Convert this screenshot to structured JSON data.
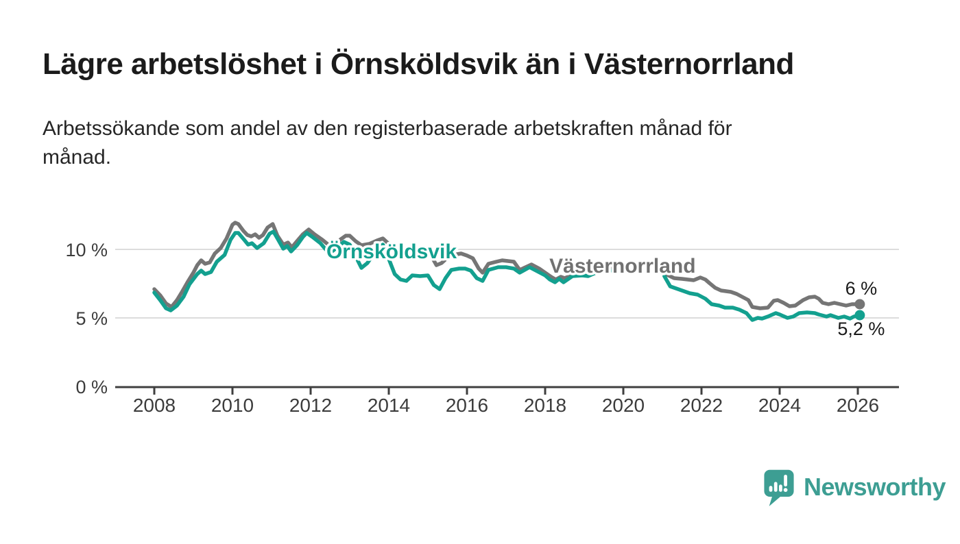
{
  "header": {
    "title": "Lägre arbetslöshet i Örnsköldsvik än i Västernorrland",
    "subtitle_lines": [
      "Arbetssökande som andel av den registerbaserade arbetskraften månad för",
      "månad."
    ]
  },
  "branding": {
    "wordmark": "Newsworthy",
    "icon": "speech-bubble-bar-chart-icon",
    "accent_color": "#3d9e93"
  },
  "chart_data": {
    "type": "line",
    "unit": "%",
    "title": "",
    "x_axis": {
      "tick_years": [
        2008,
        2010,
        2012,
        2014,
        2016,
        2018,
        2020,
        2022,
        2024,
        2026
      ],
      "range": [
        2007.0,
        2027.1
      ]
    },
    "y_axis": {
      "ticks": [
        {
          "value": 0,
          "label": "0 %"
        },
        {
          "value": 5,
          "label": "5 %"
        },
        {
          "value": 10,
          "label": "10 %"
        }
      ],
      "range": [
        0,
        12.8
      ]
    },
    "grid": {
      "show_horizontal": true,
      "gridline_values": [
        5,
        10
      ],
      "gridline_color": "#dcdcdc"
    },
    "data_gap": {
      "from": 2019.67,
      "to": 2021.05
    },
    "series": [
      {
        "name": "Västernorrland",
        "color": "#757575",
        "label_color": "#717171",
        "end_label": "6 %",
        "end_value": 6.0,
        "end_label_position": "above",
        "label_anchor": {
          "year": 2019.98,
          "value": 8.85
        },
        "segments": [
          [
            [
              2008.0,
              7.1
            ],
            [
              2008.15,
              6.65
            ],
            [
              2008.3,
              6.05
            ],
            [
              2008.44,
              5.8
            ],
            [
              2008.58,
              6.3
            ],
            [
              2008.72,
              6.95
            ],
            [
              2008.85,
              7.6
            ],
            [
              2009.0,
              8.3
            ],
            [
              2009.1,
              8.85
            ],
            [
              2009.2,
              9.2
            ],
            [
              2009.3,
              8.95
            ],
            [
              2009.42,
              9.05
            ],
            [
              2009.55,
              9.7
            ],
            [
              2009.7,
              10.1
            ],
            [
              2009.85,
              10.8
            ],
            [
              2010.0,
              11.8
            ],
            [
              2010.07,
              11.95
            ],
            [
              2010.15,
              11.85
            ],
            [
              2010.28,
              11.35
            ],
            [
              2010.38,
              11.05
            ],
            [
              2010.48,
              10.95
            ],
            [
              2010.58,
              11.1
            ],
            [
              2010.68,
              10.85
            ],
            [
              2010.78,
              11.05
            ],
            [
              2010.9,
              11.6
            ],
            [
              2011.03,
              11.85
            ],
            [
              2011.15,
              11.0
            ],
            [
              2011.3,
              10.35
            ],
            [
              2011.42,
              10.5
            ],
            [
              2011.52,
              10.15
            ],
            [
              2011.65,
              10.6
            ],
            [
              2011.8,
              11.1
            ],
            [
              2011.95,
              11.45
            ],
            [
              2012.1,
              11.1
            ],
            [
              2012.3,
              10.7
            ],
            [
              2012.45,
              10.35
            ],
            [
              2012.6,
              10.3
            ],
            [
              2012.75,
              10.7
            ],
            [
              2012.9,
              11.0
            ],
            [
              2013.0,
              11.0
            ],
            [
              2013.15,
              10.6
            ],
            [
              2013.3,
              10.3
            ],
            [
              2013.5,
              10.4
            ],
            [
              2013.7,
              10.65
            ],
            [
              2013.85,
              10.8
            ],
            [
              2014.0,
              10.4
            ],
            [
              2014.2,
              9.9
            ],
            [
              2014.35,
              9.7
            ],
            [
              2014.5,
              9.6
            ],
            [
              2014.65,
              9.75
            ],
            [
              2014.85,
              9.7
            ],
            [
              2015.03,
              9.8
            ],
            [
              2015.13,
              9.3
            ],
            [
              2015.22,
              8.85
            ],
            [
              2015.35,
              9.0
            ],
            [
              2015.5,
              9.4
            ],
            [
              2015.65,
              9.6
            ],
            [
              2015.85,
              9.7
            ],
            [
              2016.0,
              9.55
            ],
            [
              2016.15,
              9.35
            ],
            [
              2016.3,
              8.6
            ],
            [
              2016.4,
              8.3
            ],
            [
              2016.55,
              8.95
            ],
            [
              2016.75,
              9.1
            ],
            [
              2016.9,
              9.2
            ],
            [
              2017.05,
              9.15
            ],
            [
              2017.2,
              9.1
            ],
            [
              2017.35,
              8.5
            ],
            [
              2017.5,
              8.7
            ],
            [
              2017.65,
              8.9
            ],
            [
              2017.85,
              8.6
            ],
            [
              2018.0,
              8.3
            ],
            [
              2018.15,
              8.0
            ],
            [
              2018.27,
              7.8
            ],
            [
              2018.4,
              8.0
            ],
            [
              2018.5,
              7.9
            ],
            [
              2018.7,
              8.15
            ],
            [
              2018.9,
              8.3
            ],
            [
              2019.1,
              8.4
            ],
            [
              2019.3,
              8.5
            ],
            [
              2019.5,
              8.55
            ],
            [
              2019.67,
              8.6
            ]
          ],
          [
            [
              2021.05,
              8.25
            ],
            [
              2021.3,
              7.9
            ],
            [
              2021.5,
              7.85
            ],
            [
              2021.65,
              7.8
            ],
            [
              2021.8,
              7.75
            ],
            [
              2021.97,
              7.95
            ],
            [
              2022.1,
              7.8
            ],
            [
              2022.2,
              7.55
            ],
            [
              2022.35,
              7.2
            ],
            [
              2022.5,
              7.0
            ],
            [
              2022.75,
              6.9
            ],
            [
              2022.9,
              6.75
            ],
            [
              2023.0,
              6.6
            ],
            [
              2023.2,
              6.3
            ],
            [
              2023.3,
              5.8
            ],
            [
              2023.5,
              5.7
            ],
            [
              2023.7,
              5.75
            ],
            [
              2023.85,
              6.25
            ],
            [
              2023.95,
              6.3
            ],
            [
              2024.1,
              6.1
            ],
            [
              2024.25,
              5.85
            ],
            [
              2024.4,
              5.9
            ],
            [
              2024.6,
              6.3
            ],
            [
              2024.75,
              6.5
            ],
            [
              2024.9,
              6.55
            ],
            [
              2025.0,
              6.4
            ],
            [
              2025.1,
              6.1
            ],
            [
              2025.25,
              6.0
            ],
            [
              2025.4,
              6.1
            ],
            [
              2025.55,
              6.0
            ],
            [
              2025.7,
              5.9
            ],
            [
              2025.85,
              6.0
            ],
            [
              2026.05,
              6.0
            ]
          ]
        ]
      },
      {
        "name": "Örnsköldsvik",
        "color": "#13a08f",
        "label_color": "#13a08f",
        "end_label": "5,2 %",
        "end_value": 5.2,
        "end_label_position": "below",
        "label_anchor": {
          "year": 2014.07,
          "value": 9.9
        },
        "segments": [
          [
            [
              2008.0,
              6.85
            ],
            [
              2008.15,
              6.3
            ],
            [
              2008.3,
              5.7
            ],
            [
              2008.42,
              5.55
            ],
            [
              2008.58,
              5.9
            ],
            [
              2008.75,
              6.55
            ],
            [
              2008.9,
              7.45
            ],
            [
              2009.1,
              8.2
            ],
            [
              2009.2,
              8.45
            ],
            [
              2009.3,
              8.2
            ],
            [
              2009.45,
              8.35
            ],
            [
              2009.6,
              9.1
            ],
            [
              2009.8,
              9.6
            ],
            [
              2009.95,
              10.7
            ],
            [
              2010.07,
              11.2
            ],
            [
              2010.15,
              11.2
            ],
            [
              2010.3,
              10.7
            ],
            [
              2010.4,
              10.35
            ],
            [
              2010.5,
              10.45
            ],
            [
              2010.63,
              10.1
            ],
            [
              2010.8,
              10.45
            ],
            [
              2010.95,
              11.15
            ],
            [
              2011.05,
              11.3
            ],
            [
              2011.15,
              10.8
            ],
            [
              2011.3,
              10.05
            ],
            [
              2011.4,
              10.25
            ],
            [
              2011.5,
              9.85
            ],
            [
              2011.65,
              10.3
            ],
            [
              2011.8,
              10.9
            ],
            [
              2011.9,
              11.2
            ],
            [
              2012.05,
              10.9
            ],
            [
              2012.25,
              10.45
            ],
            [
              2012.4,
              9.95
            ],
            [
              2012.55,
              9.85
            ],
            [
              2012.7,
              10.2
            ],
            [
              2012.85,
              10.55
            ],
            [
              2013.0,
              10.35
            ],
            [
              2013.15,
              9.5
            ],
            [
              2013.3,
              8.65
            ],
            [
              2013.45,
              9.0
            ],
            [
              2013.6,
              9.6
            ],
            [
              2013.75,
              10.15
            ],
            [
              2013.85,
              10.35
            ],
            [
              2014.0,
              9.3
            ],
            [
              2014.15,
              8.2
            ],
            [
              2014.3,
              7.8
            ],
            [
              2014.45,
              7.7
            ],
            [
              2014.6,
              8.1
            ],
            [
              2014.8,
              8.05
            ],
            [
              2015.0,
              8.1
            ],
            [
              2015.15,
              7.4
            ],
            [
              2015.3,
              7.1
            ],
            [
              2015.45,
              7.9
            ],
            [
              2015.6,
              8.5
            ],
            [
              2015.8,
              8.6
            ],
            [
              2015.95,
              8.6
            ],
            [
              2016.1,
              8.45
            ],
            [
              2016.25,
              7.9
            ],
            [
              2016.4,
              7.7
            ],
            [
              2016.55,
              8.5
            ],
            [
              2016.8,
              8.7
            ],
            [
              2017.0,
              8.7
            ],
            [
              2017.2,
              8.6
            ],
            [
              2017.35,
              8.3
            ],
            [
              2017.6,
              8.7
            ],
            [
              2017.8,
              8.4
            ],
            [
              2018.0,
              8.1
            ],
            [
              2018.12,
              7.8
            ],
            [
              2018.25,
              7.6
            ],
            [
              2018.36,
              7.85
            ],
            [
              2018.47,
              7.6
            ],
            [
              2018.7,
              8.05
            ],
            [
              2018.95,
              8.1
            ],
            [
              2019.1,
              8.05
            ],
            [
              2019.3,
              8.3
            ],
            [
              2019.5,
              8.4
            ],
            [
              2019.67,
              8.45
            ]
          ],
          [
            [
              2021.05,
              8.05
            ],
            [
              2021.2,
              7.3
            ],
            [
              2021.45,
              7.05
            ],
            [
              2021.7,
              6.8
            ],
            [
              2021.9,
              6.7
            ],
            [
              2022.1,
              6.4
            ],
            [
              2022.26,
              6.0
            ],
            [
              2022.45,
              5.9
            ],
            [
              2022.6,
              5.75
            ],
            [
              2022.8,
              5.75
            ],
            [
              2022.97,
              5.6
            ],
            [
              2023.15,
              5.35
            ],
            [
              2023.3,
              4.85
            ],
            [
              2023.44,
              5.0
            ],
            [
              2023.55,
              4.95
            ],
            [
              2023.7,
              5.1
            ],
            [
              2023.9,
              5.35
            ],
            [
              2024.0,
              5.25
            ],
            [
              2024.2,
              5.0
            ],
            [
              2024.35,
              5.1
            ],
            [
              2024.5,
              5.35
            ],
            [
              2024.7,
              5.4
            ],
            [
              2024.9,
              5.35
            ],
            [
              2025.0,
              5.25
            ],
            [
              2025.2,
              5.1
            ],
            [
              2025.3,
              5.2
            ],
            [
              2025.5,
              5.0
            ],
            [
              2025.65,
              5.1
            ],
            [
              2025.8,
              4.95
            ],
            [
              2025.9,
              5.1
            ],
            [
              2026.05,
              5.2
            ]
          ]
        ]
      }
    ]
  }
}
